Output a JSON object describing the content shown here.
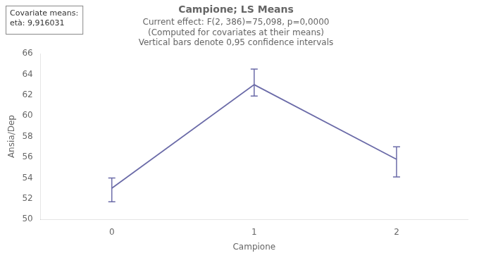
{
  "chart_data": {
    "type": "line",
    "title": "Campione; LS Means",
    "subtitle": [
      "Current effect: F(2, 386)=75,098, p=0,0000",
      "(Computed for covariates at their means)",
      "Vertical bars denote 0,95 confidence intervals"
    ],
    "annotations": [
      "Covariate means:",
      "età: 9,916031"
    ],
    "x": [
      0,
      1,
      2
    ],
    "values": [
      53.0,
      63.0,
      55.8
    ],
    "yerr_low": [
      1.3,
      1.1,
      1.7
    ],
    "yerr_high": [
      1.0,
      1.5,
      1.2
    ],
    "color": "#6b6ba8",
    "xlabel": "Campione",
    "ylabel": "Ansia/Dep",
    "xlim": [
      -0.5,
      2.5
    ],
    "ylim": [
      50,
      66
    ],
    "xticks": [
      0,
      1,
      2
    ],
    "yticks": [
      50,
      52,
      54,
      56,
      58,
      60,
      62,
      64,
      66
    ],
    "grid": false
  }
}
